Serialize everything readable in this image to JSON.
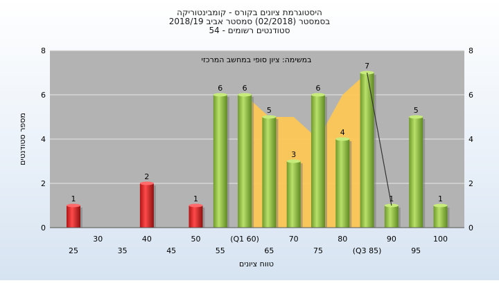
{
  "chart_data": {
    "type": "bar",
    "title_lines": [
      "היסטוגרמת ציונים בקורס - קומבינטוריקה",
      "בסמסטר  (02/2018)  סמסטר אביב 2018/19",
      "סטודנטים רשומים - 54"
    ],
    "subtitle": "במשימה: ציון סופי במחשב המרכזי",
    "xlabel": "טווח ציונים",
    "ylabel": "מספר סטודנטים",
    "ylim": [
      0,
      8
    ],
    "yticks": [
      0,
      2,
      4,
      6,
      8
    ],
    "grid": true,
    "x_ticks": [
      {
        "x": 25,
        "label": "25"
      },
      {
        "x": 30,
        "label": "30"
      },
      {
        "x": 35,
        "label": "35"
      },
      {
        "x": 40,
        "label": "40"
      },
      {
        "x": 45,
        "label": "45"
      },
      {
        "x": 50,
        "label": "50"
      },
      {
        "x": 55,
        "label": "55"
      },
      {
        "x": 60,
        "label": "(Q1 60)"
      },
      {
        "x": 65,
        "label": "65"
      },
      {
        "x": 70,
        "label": "70"
      },
      {
        "x": 75,
        "label": "75"
      },
      {
        "x": 80,
        "label": "80"
      },
      {
        "x": 85,
        "label": "(Q3 85)"
      },
      {
        "x": 90,
        "label": "90"
      },
      {
        "x": 95,
        "label": "95"
      },
      {
        "x": 100,
        "label": "100"
      }
    ],
    "bars": [
      {
        "x": 25,
        "value": 1,
        "status": "fail"
      },
      {
        "x": 40,
        "value": 2,
        "status": "fail"
      },
      {
        "x": 50,
        "value": 1,
        "status": "fail"
      },
      {
        "x": 55,
        "value": 6,
        "status": "pass"
      },
      {
        "x": 60,
        "value": 6,
        "status": "pass"
      },
      {
        "x": 65,
        "value": 5,
        "status": "pass"
      },
      {
        "x": 70,
        "value": 3,
        "status": "pass"
      },
      {
        "x": 75,
        "value": 6,
        "status": "pass"
      },
      {
        "x": 80,
        "value": 4,
        "status": "pass"
      },
      {
        "x": 85,
        "value": 7,
        "status": "pass"
      },
      {
        "x": 90,
        "value": 1,
        "status": "pass"
      },
      {
        "x": 95,
        "value": 5,
        "status": "pass"
      },
      {
        "x": 100,
        "value": 1,
        "status": "pass"
      }
    ],
    "iqr_area": [
      {
        "x": 60,
        "value": 6
      },
      {
        "x": 65,
        "value": 5
      },
      {
        "x": 70,
        "value": 5
      },
      {
        "x": 75,
        "value": 4
      },
      {
        "x": 80,
        "value": 6
      },
      {
        "x": 85,
        "value": 7
      }
    ],
    "trend_line": [
      {
        "x": 85,
        "value": 7
      },
      {
        "x": 90,
        "value": 1
      }
    ],
    "colors": {
      "fail_bar": "#e02a2a",
      "fail_bar_dark": "#8e1010",
      "pass_bar": "#9cc84a",
      "pass_bar_dark": "#5f8a22",
      "iqr_fill": "#ffc850",
      "plot_bg": "#b3b3b3",
      "grid": "#e8e8e8"
    }
  }
}
